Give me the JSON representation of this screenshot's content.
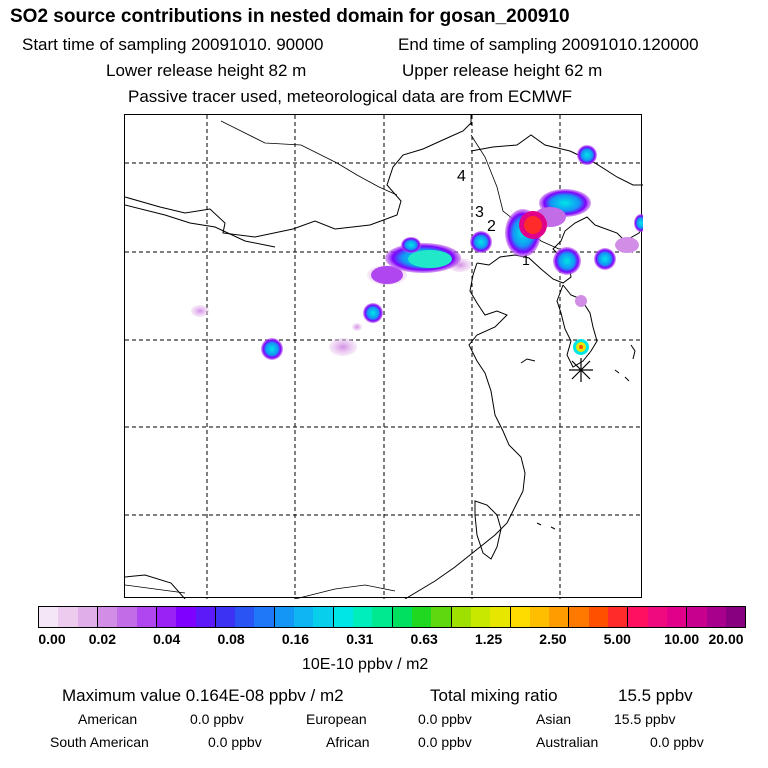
{
  "header": {
    "title": "SO2 source contributions in nested domain for gosan_200910",
    "start_time": "Start time of sampling 20091010. 90000",
    "end_time": "End time of sampling 20091010.120000",
    "lower_height": "Lower release height   82 m",
    "upper_height": "Upper release height   62 m",
    "note": "Passive tracer used, meteorological data are from ECMWF"
  },
  "map": {
    "labels": [
      "4",
      "3",
      "2",
      "1"
    ],
    "receptor_icon": "asterisk-icon"
  },
  "colorbar": {
    "colors": [
      "#f4e6f6",
      "#eccbef",
      "#e0aee9",
      "#d28ee6",
      "#c36ce8",
      "#b046f0",
      "#9a22f5",
      "#8000ff",
      "#5c1af8",
      "#3b32f4",
      "#2a55f4",
      "#1e78f7",
      "#1496f6",
      "#0fb4f2",
      "#08d0ec",
      "#00e6e6",
      "#00eebb",
      "#00e890",
      "#00e060",
      "#20d820",
      "#60d810",
      "#a0e000",
      "#c8e800",
      "#e6e600",
      "#ffdc00",
      "#ffbe00",
      "#ff9c00",
      "#ff7800",
      "#ff5000",
      "#ff2a2a",
      "#ff1060",
      "#f00a80",
      "#e0008a",
      "#c8008e",
      "#a8008c",
      "#880080"
    ],
    "ticks": [
      "0.00",
      "0.02",
      "0.04",
      "0.08",
      "0.16",
      "0.31",
      "0.63",
      "1.25",
      "2.50",
      "5.00",
      "10.00",
      "20.00"
    ],
    "unit": "10E-10 ppbv / m2"
  },
  "summary": {
    "max_value": "Maximum value  0.164E-08 ppbv / m2",
    "total": "Total mixing ratio",
    "total_value": "15.5 ppbv",
    "regions": [
      {
        "name": "American",
        "value": "0.0 ppbv"
      },
      {
        "name": "European",
        "value": "0.0 ppbv"
      },
      {
        "name": "Asian",
        "value": "15.5 ppbv"
      },
      {
        "name": "South American",
        "value": "0.0 ppbv"
      },
      {
        "name": "African",
        "value": "0.0 ppbv"
      },
      {
        "name": "Australian",
        "value": "0.0 ppbv"
      }
    ]
  }
}
